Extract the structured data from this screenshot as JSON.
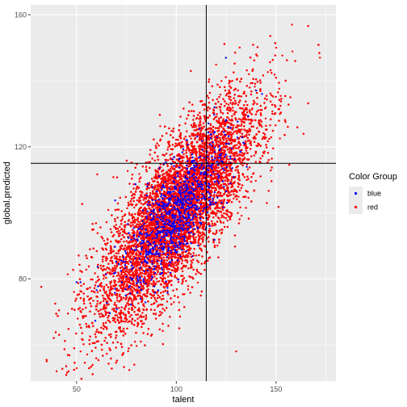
{
  "chart_data": {
    "type": "scatter",
    "xlabel": "talent",
    "ylabel": "global.predicted",
    "x_ticks": [
      50,
      100,
      150
    ],
    "y_ticks": [
      80,
      120,
      160
    ],
    "xlim": [
      27,
      180
    ],
    "ylim": [
      49,
      163
    ],
    "grid": true,
    "reference_lines": {
      "vertical_x": 115,
      "horizontal_y": 115
    },
    "legend": {
      "title": "Color Group",
      "position": "right",
      "entries": [
        {
          "name": "blue",
          "color": "#0000ff"
        },
        {
          "name": "red",
          "color": "#ff0000"
        }
      ]
    },
    "series": [
      {
        "name": "red",
        "color": "#ff0000",
        "distribution": {
          "x_mean": 100,
          "x_sd": 20,
          "y_mean": 100,
          "y_sd": 17,
          "correlation": 0.78,
          "n": 12000
        },
        "extreme_points": [
          {
            "x": 172,
            "y": 147
          },
          {
            "x": 158,
            "y": 157
          },
          {
            "x": 150,
            "y": 150
          },
          {
            "x": 35,
            "y": 55
          },
          {
            "x": 40,
            "y": 52
          },
          {
            "x": 46,
            "y": 52
          },
          {
            "x": 52,
            "y": 58
          },
          {
            "x": 130,
            "y": 58
          }
        ]
      },
      {
        "name": "blue",
        "color": "#0000ff",
        "distribution": {
          "x_mean": 100,
          "x_sd": 13,
          "y_mean": 100,
          "y_sd": 11,
          "correlation": 0.75,
          "n": 900
        },
        "extreme_points": [
          {
            "x": 50,
            "y": 79
          },
          {
            "x": 52,
            "y": 79
          },
          {
            "x": 140,
            "y": 137
          }
        ]
      }
    ]
  }
}
